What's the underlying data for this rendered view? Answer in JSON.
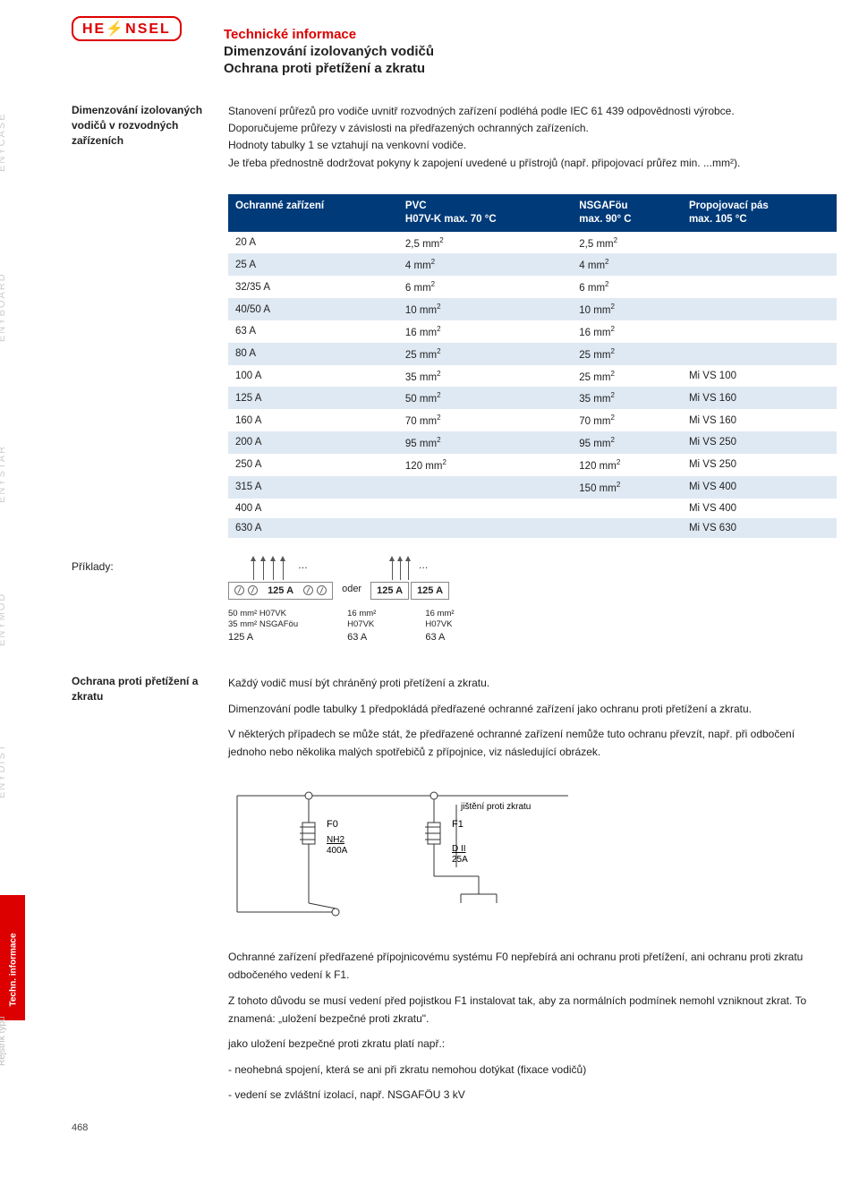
{
  "logo": "HE⚡NSEL",
  "header": {
    "line1": "Technické informace",
    "line2": "Dimenzování izolovaných vodičů",
    "line3": "Ochrana proti přetížení a zkratu"
  },
  "side_labels": [
    "ENYCASE",
    "ENYBOARD",
    "ENYSTAR",
    "ENYMOD",
    "ENYDIST"
  ],
  "red_tab": "Techn. informace",
  "grey_tab": "Rejstřík typů",
  "intro": {
    "left": "Dimenzování izolovaných vodičů v rozvodných zařízeních",
    "right": [
      "Stanovení průřezů pro vodiče uvnitř rozvodných zařízení podléhá podle IEC 61 439 odpovědnosti výrobce.",
      "Doporučujeme průřezy v závislosti na předřazených ochranných zařízeních.",
      "Hodnoty tabulky 1 se vztahují na venkovní vodiče.",
      "Je třeba přednostně dodržovat pokyny k zapojení uvedené u přístrojů (např. připojovací průřez min. ...mm²)."
    ]
  },
  "table": {
    "header_bg": "#003a78",
    "header_color": "#ffffff",
    "row_alt_bg": "#dfe9f3",
    "columns": [
      {
        "l1": "Ochranné zařízení",
        "l2": ""
      },
      {
        "l1": "PVC",
        "l2": "H07V-K max. 70 °C"
      },
      {
        "l1": "NSGAFöu",
        "l2": "max. 90° C"
      },
      {
        "l1": "Propojovací pás",
        "l2": "max. 105 °C"
      }
    ],
    "rows": [
      [
        "20 A",
        "2,5 mm²",
        "2,5 mm²",
        ""
      ],
      [
        "25 A",
        "4 mm²",
        "4 mm²",
        ""
      ],
      [
        "32/35 A",
        "6 mm²",
        "6 mm²",
        ""
      ],
      [
        "40/50 A",
        "10 mm²",
        "10 mm²",
        ""
      ],
      [
        "63 A",
        "16 mm²",
        "16 mm²",
        ""
      ],
      [
        "80 A",
        "25 mm²",
        "25 mm²",
        ""
      ],
      [
        "100 A",
        "35 mm²",
        "25 mm²",
        "Mi VS 100"
      ],
      [
        "125 A",
        "50 mm²",
        "35 mm²",
        "Mi VS 160"
      ],
      [
        "160 A",
        "70 mm²",
        "70 mm²",
        "Mi VS 160"
      ],
      [
        "200 A",
        "95 mm²",
        "95 mm²",
        "Mi VS 250"
      ],
      [
        "250 A",
        "120 mm²",
        "120 mm²",
        "Mi VS 250"
      ],
      [
        "315 A",
        "",
        "150 mm²",
        "Mi VS 400"
      ],
      [
        "400 A",
        "",
        "",
        "Mi VS 400"
      ],
      [
        "630 A",
        "",
        "",
        "Mi VS 630"
      ]
    ]
  },
  "examples": {
    "label": "Příklady:",
    "box1": "125 A",
    "oder": "oder",
    "box2a": "125 A",
    "box2b": "125 A",
    "sub1a": "50 mm² H07VK",
    "sub1b": "35 mm² NSGAFöu",
    "sub1c": "125 A",
    "sub2a": "16 mm²",
    "sub2b": "H07VK",
    "sub2c": "63 A",
    "sub3a": "16 mm²",
    "sub3b": "H07VK",
    "sub3c": "63 A"
  },
  "protection": {
    "left": "Ochrana proti přetížení a zkratu",
    "paras": [
      "Každý vodič musí být chráněný proti přetížení a zkratu.",
      "Dimenzování podle tabulky 1 předpokládá předřazené ochranné zařízení jako ochranu proti přetížení a zkratu.",
      "V některých případech se může stát, že předřazené ochranné zařízení nemůže tuto ochranu převzít, např. při odbočení jednoho nebo několika malých spotřebičů z přípojnice, viz následující obrázek."
    ]
  },
  "circuit": {
    "F0": "F0",
    "NH2": "NH2",
    "A400": "400A",
    "F1": "F1",
    "DII": "D II",
    "A25": "25A",
    "label": "jištění proti zkratu"
  },
  "footer": {
    "paras": [
      "Ochranné zařízení předřazené přípojnicovému systému F0 nepřebírá ani ochranu proti přetížení, ani ochranu proti zkratu odbočeného vedení k F1.",
      "Z tohoto důvodu se musí vedení před pojistkou F1 instalovat tak, aby za normálních podmínek nemohl vzniknout zkrat. To znamená: „uložení bezpečné proti zkratu\".",
      "jako uložení bezpečné proti zkratu platí např.:",
      "- neohebná spojení, která se ani při zkratu nemohou dotýkat (fixace vodičů)",
      "- vedení se  zvláštní izolací, např. NSGAFÖU 3 kV"
    ]
  },
  "page_number": "468"
}
